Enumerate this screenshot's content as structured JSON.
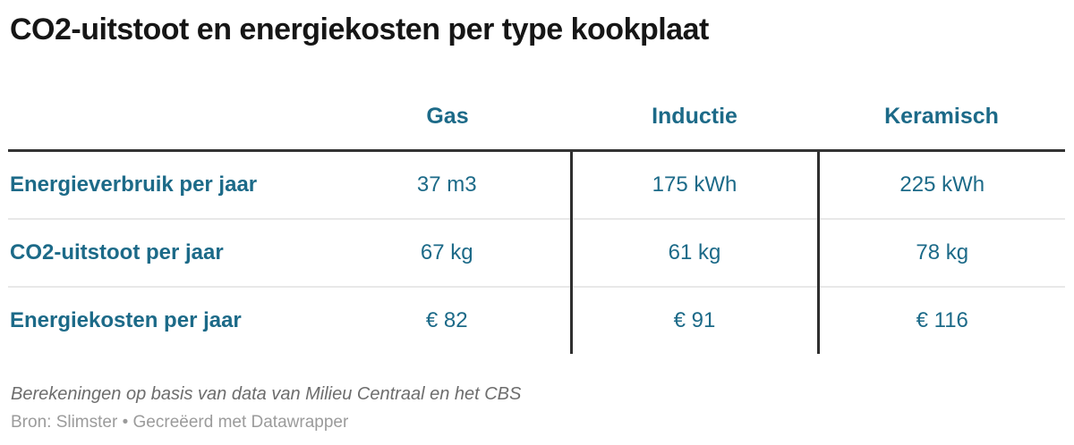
{
  "title": "CO2-uitstoot en energiekosten per type kookplaat",
  "table": {
    "columns": [
      "Gas",
      "Inductie",
      "Keramisch"
    ],
    "rows": [
      {
        "label": "Energieverbruik per jaar",
        "values": [
          "37 m3",
          "175 kWh",
          "225 kWh"
        ]
      },
      {
        "label": "CO2-uitstoot per jaar",
        "values": [
          "67 kg",
          "61 kg",
          "78 kg"
        ]
      },
      {
        "label": "Energiekosten per jaar",
        "values": [
          "€ 82",
          "€ 91",
          "€ 116"
        ]
      }
    ]
  },
  "footer": {
    "note": "Berekeningen op basis van data van Milieu Centraal en het CBS",
    "source": "Bron: Slimster • Gecreëerd met Datawrapper"
  },
  "colors": {
    "accent_teal": "#1c6a88",
    "title_text": "#161616",
    "header_rule": "#333333",
    "column_divider": "#2f2f2f",
    "row_separator": "#e8e8e8",
    "note_text": "#6d6d6d",
    "source_text": "#9b9b9b"
  },
  "chart_data": {
    "type": "table",
    "title": "CO2-uitstoot en energiekosten per type kookplaat",
    "columns": [
      "",
      "Gas",
      "Inductie",
      "Keramisch"
    ],
    "rows": [
      [
        "Energieverbruik per jaar",
        "37 m3",
        "175 kWh",
        "225 kWh"
      ],
      [
        "CO2-uitstoot per jaar",
        "67 kg",
        "61 kg",
        "78 kg"
      ],
      [
        "Energiekosten per jaar",
        "€ 82",
        "€ 91",
        "€ 116"
      ]
    ],
    "notes": "Berekeningen op basis van data van Milieu Centraal en het CBS",
    "source": "Bron: Slimster • Gecreëerd met Datawrapper"
  }
}
